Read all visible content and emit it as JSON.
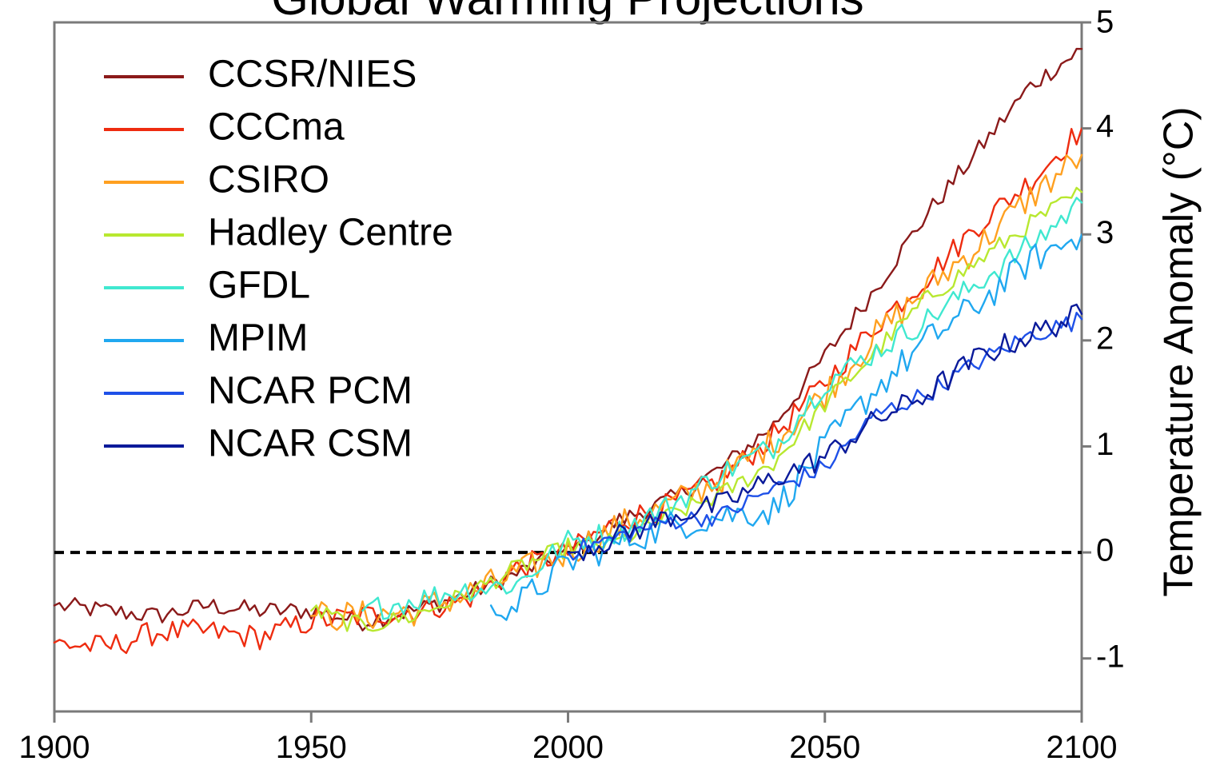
{
  "chart_data": {
    "type": "line",
    "title": "Global Warming Projections",
    "xlabel": "",
    "ylabel": "Temperature Anomaly (°C)",
    "xlim": [
      1900,
      2100
    ],
    "ylim": [
      -1.5,
      5
    ],
    "x_ticks": [
      1900,
      1950,
      2000,
      2050,
      2100
    ],
    "y_ticks": [
      -1,
      0,
      1,
      2,
      3,
      4,
      5
    ],
    "y_axis_position": "right",
    "legend_position": "top-left",
    "grid": false,
    "reference_line": {
      "y": 0,
      "style": "dashed"
    },
    "series": [
      {
        "name": "CCSR/NIES",
        "color": "#8b1a1a",
        "x": [
          1900,
          1910,
          1920,
          1930,
          1940,
          1950,
          1960,
          1970,
          1980,
          1990,
          2000,
          2010,
          2020,
          2030,
          2040,
          2050,
          2060,
          2070,
          2080,
          2090,
          2100
        ],
        "y": [
          -0.5,
          -0.55,
          -0.6,
          -0.5,
          -0.55,
          -0.55,
          -0.65,
          -0.55,
          -0.4,
          -0.2,
          0.0,
          0.3,
          0.5,
          0.8,
          1.2,
          1.85,
          2.5,
          3.2,
          3.8,
          4.4,
          4.75
        ]
      },
      {
        "name": "CCCma",
        "color": "#ee2c10",
        "x": [
          1900,
          1910,
          1920,
          1930,
          1940,
          1950,
          1960,
          1970,
          1980,
          1990,
          2000,
          2010,
          2020,
          2030,
          2040,
          2050,
          2060,
          2070,
          2080,
          2090,
          2100
        ],
        "y": [
          -0.85,
          -0.9,
          -0.75,
          -0.75,
          -0.8,
          -0.65,
          -0.6,
          -0.55,
          -0.45,
          -0.15,
          0.0,
          0.3,
          0.45,
          0.7,
          1.1,
          1.6,
          2.15,
          2.6,
          3.1,
          3.5,
          4.0
        ]
      },
      {
        "name": "CSIRO",
        "color": "#ffa020",
        "x": [
          1950,
          1960,
          1970,
          1980,
          1990,
          2000,
          2010,
          2020,
          2030,
          2040,
          2050,
          2060,
          2070,
          2080,
          2090,
          2100
        ],
        "y": [
          -0.6,
          -0.6,
          -0.55,
          -0.4,
          -0.2,
          0.0,
          0.25,
          0.45,
          0.7,
          1.05,
          1.5,
          2.05,
          2.5,
          2.9,
          3.35,
          3.75
        ]
      },
      {
        "name": "Hadley Centre",
        "color": "#b8e830",
        "x": [
          1950,
          1960,
          1970,
          1980,
          1990,
          2000,
          2010,
          2020,
          2030,
          2040,
          2050,
          2060,
          2070,
          2080,
          2090,
          2100
        ],
        "y": [
          -0.55,
          -0.7,
          -0.6,
          -0.4,
          -0.15,
          0.05,
          0.1,
          0.35,
          0.55,
          0.85,
          1.4,
          1.9,
          2.4,
          2.75,
          3.1,
          3.4
        ]
      },
      {
        "name": "GFDL",
        "color": "#40e8d0",
        "x": [
          1960,
          1970,
          1980,
          1990,
          2000,
          2010,
          2020,
          2030,
          2040,
          2050,
          2060,
          2070,
          2080,
          2090,
          2100
        ],
        "y": [
          -0.55,
          -0.45,
          -0.35,
          -0.3,
          0.1,
          0.2,
          0.45,
          0.75,
          1.0,
          1.6,
          1.9,
          2.2,
          2.55,
          2.9,
          3.3
        ]
      },
      {
        "name": "MPIM",
        "color": "#20a8f0",
        "x": [
          1985,
          1990,
          2000,
          2010,
          2020,
          2030,
          2040,
          2050,
          2060,
          2070,
          2080,
          2090,
          2100
        ],
        "y": [
          -0.5,
          -0.5,
          -0.1,
          0.1,
          0.25,
          0.35,
          0.4,
          1.0,
          1.55,
          2.0,
          2.35,
          2.75,
          3.0
        ]
      },
      {
        "name": "NCAR PCM",
        "color": "#1e50e8",
        "x": [
          2000,
          2010,
          2020,
          2030,
          2040,
          2050,
          2060,
          2070,
          2080,
          2090,
          2100
        ],
        "y": [
          0.0,
          0.15,
          0.3,
          0.35,
          0.6,
          0.8,
          1.3,
          1.5,
          1.8,
          2.05,
          2.2
        ]
      },
      {
        "name": "NCAR CSM",
        "color": "#0a1a9a",
        "x": [
          2000,
          2010,
          2020,
          2030,
          2040,
          2050,
          2060,
          2070,
          2080,
          2090,
          2100
        ],
        "y": [
          0.0,
          0.15,
          0.35,
          0.45,
          0.7,
          0.9,
          1.25,
          1.5,
          1.85,
          2.05,
          2.25
        ]
      }
    ]
  }
}
